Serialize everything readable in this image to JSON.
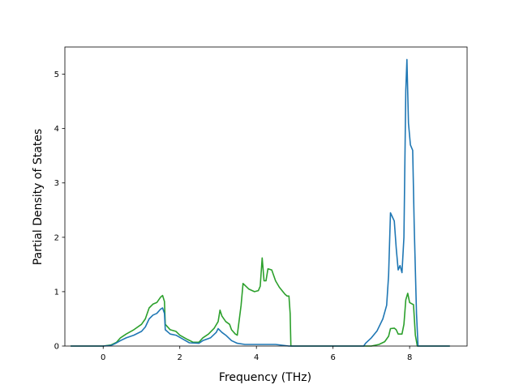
{
  "chart_data": {
    "type": "line",
    "title": "",
    "xlabel": "Frequency (THz)",
    "ylabel": "Partial Density of States",
    "xlim": [
      -1.0,
      9.5
    ],
    "ylim": [
      0,
      5.5
    ],
    "xticks": [
      0,
      2,
      4,
      6,
      8
    ],
    "yticks": [
      0,
      1,
      2,
      3,
      4,
      5
    ],
    "grid": false,
    "legend": "none",
    "series": [
      {
        "color": "#2ca02c",
        "points": [
          [
            -0.85,
            0
          ],
          [
            0.0,
            0
          ],
          [
            0.2,
            0.02
          ],
          [
            0.35,
            0.07
          ],
          [
            0.45,
            0.15
          ],
          [
            0.6,
            0.22
          ],
          [
            0.8,
            0.3
          ],
          [
            1.0,
            0.4
          ],
          [
            1.1,
            0.5
          ],
          [
            1.2,
            0.7
          ],
          [
            1.3,
            0.77
          ],
          [
            1.4,
            0.8
          ],
          [
            1.5,
            0.9
          ],
          [
            1.55,
            0.93
          ],
          [
            1.6,
            0.82
          ],
          [
            1.62,
            0.4
          ],
          [
            1.75,
            0.3
          ],
          [
            1.9,
            0.27
          ],
          [
            2.0,
            0.2
          ],
          [
            2.2,
            0.12
          ],
          [
            2.35,
            0.07
          ],
          [
            2.5,
            0.07
          ],
          [
            2.6,
            0.15
          ],
          [
            2.75,
            0.22
          ],
          [
            2.9,
            0.33
          ],
          [
            3.0,
            0.45
          ],
          [
            3.05,
            0.66
          ],
          [
            3.1,
            0.55
          ],
          [
            3.2,
            0.45
          ],
          [
            3.3,
            0.4
          ],
          [
            3.35,
            0.3
          ],
          [
            3.45,
            0.22
          ],
          [
            3.5,
            0.2
          ],
          [
            3.6,
            0.75
          ],
          [
            3.65,
            1.15
          ],
          [
            3.8,
            1.05
          ],
          [
            3.95,
            1.0
          ],
          [
            4.05,
            1.02
          ],
          [
            4.1,
            1.1
          ],
          [
            4.15,
            1.62
          ],
          [
            4.2,
            1.2
          ],
          [
            4.25,
            1.2
          ],
          [
            4.3,
            1.42
          ],
          [
            4.4,
            1.4
          ],
          [
            4.5,
            1.2
          ],
          [
            4.6,
            1.08
          ],
          [
            4.75,
            0.95
          ],
          [
            4.8,
            0.92
          ],
          [
            4.85,
            0.92
          ],
          [
            4.88,
            0.6
          ],
          [
            4.9,
            0
          ],
          [
            7.0,
            0
          ],
          [
            7.2,
            0.03
          ],
          [
            7.35,
            0.08
          ],
          [
            7.45,
            0.18
          ],
          [
            7.5,
            0.32
          ],
          [
            7.6,
            0.33
          ],
          [
            7.65,
            0.3
          ],
          [
            7.7,
            0.22
          ],
          [
            7.8,
            0.22
          ],
          [
            7.85,
            0.4
          ],
          [
            7.9,
            0.85
          ],
          [
            7.95,
            0.97
          ],
          [
            8.0,
            0.8
          ],
          [
            8.05,
            0.78
          ],
          [
            8.1,
            0.76
          ],
          [
            8.15,
            0.2
          ],
          [
            8.2,
            0
          ],
          [
            9.05,
            0
          ]
        ]
      },
      {
        "color": "#1f77b4",
        "points": [
          [
            -0.85,
            0
          ],
          [
            0.0,
            0
          ],
          [
            0.2,
            0.01
          ],
          [
            0.3,
            0.04
          ],
          [
            0.45,
            0.1
          ],
          [
            0.6,
            0.15
          ],
          [
            0.8,
            0.2
          ],
          [
            1.0,
            0.27
          ],
          [
            1.1,
            0.35
          ],
          [
            1.2,
            0.5
          ],
          [
            1.3,
            0.57
          ],
          [
            1.4,
            0.6
          ],
          [
            1.5,
            0.68
          ],
          [
            1.55,
            0.7
          ],
          [
            1.6,
            0.6
          ],
          [
            1.62,
            0.3
          ],
          [
            1.75,
            0.22
          ],
          [
            1.9,
            0.2
          ],
          [
            2.1,
            0.12
          ],
          [
            2.25,
            0.06
          ],
          [
            2.5,
            0.05
          ],
          [
            2.6,
            0.1
          ],
          [
            2.8,
            0.15
          ],
          [
            2.95,
            0.25
          ],
          [
            3.0,
            0.32
          ],
          [
            3.1,
            0.25
          ],
          [
            3.2,
            0.2
          ],
          [
            3.35,
            0.1
          ],
          [
            3.5,
            0.05
          ],
          [
            3.7,
            0.03
          ],
          [
            4.0,
            0.03
          ],
          [
            4.5,
            0.03
          ],
          [
            4.85,
            0
          ],
          [
            6.8,
            0
          ],
          [
            6.85,
            0.05
          ],
          [
            7.0,
            0.15
          ],
          [
            7.15,
            0.28
          ],
          [
            7.3,
            0.5
          ],
          [
            7.4,
            0.75
          ],
          [
            7.45,
            1.3
          ],
          [
            7.5,
            2.45
          ],
          [
            7.6,
            2.3
          ],
          [
            7.65,
            1.8
          ],
          [
            7.7,
            1.4
          ],
          [
            7.75,
            1.48
          ],
          [
            7.8,
            1.35
          ],
          [
            7.85,
            2.0
          ],
          [
            7.9,
            4.7
          ],
          [
            7.93,
            5.27
          ],
          [
            7.97,
            4.1
          ],
          [
            8.02,
            3.7
          ],
          [
            8.08,
            3.6
          ],
          [
            8.12,
            2.2
          ],
          [
            8.15,
            1.4
          ],
          [
            8.18,
            0.6
          ],
          [
            8.22,
            0
          ],
          [
            9.05,
            0
          ]
        ]
      }
    ]
  }
}
